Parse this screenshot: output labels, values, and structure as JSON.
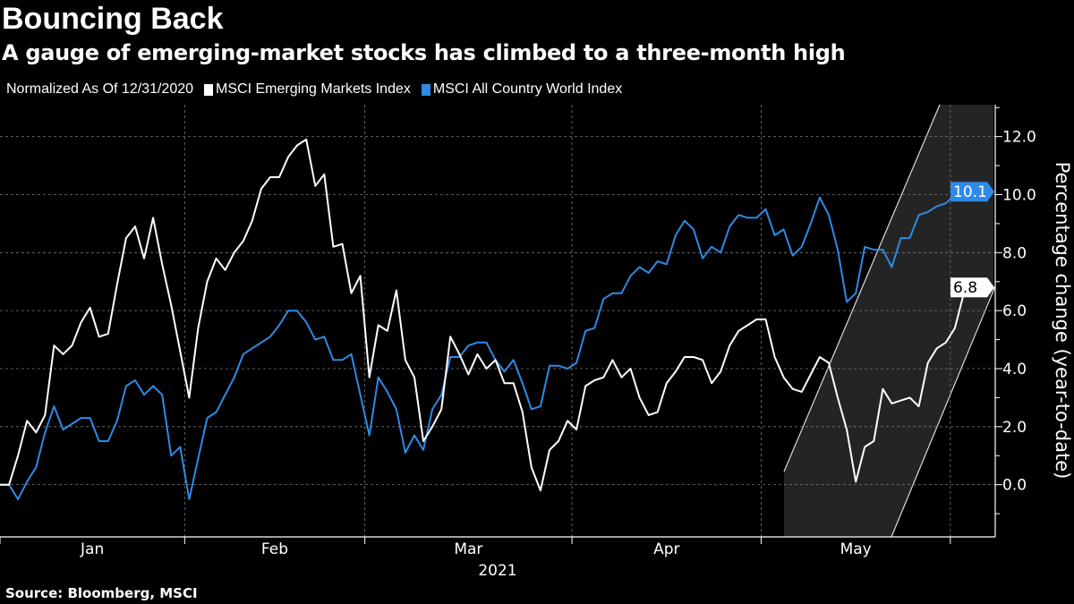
{
  "title": "Bouncing Back",
  "subtitle": "A gauge of emerging-market stocks has climbed to a three-month high",
  "legend": {
    "note": "Normalized As Of 12/31/2020",
    "items": [
      {
        "label": "MSCI Emerging Markets Index",
        "color": "#ffffff"
      },
      {
        "label": "MSCI All Country World Index",
        "color": "#2e8ae6"
      }
    ]
  },
  "source": "Source: Bloomberg, MSCI",
  "chart_data": {
    "type": "line",
    "title": "Bouncing Back",
    "ylabel": "Percentage change (year-to-date)",
    "xlabel": "2021",
    "x_tick_labels": [
      "Jan",
      "Feb",
      "Mar",
      "Apr",
      "May"
    ],
    "y_ticks": [
      "0.0",
      "2.0",
      "4.0",
      "6.0",
      "8.0",
      "10.0",
      "12.0"
    ],
    "ylim": [
      -1.8,
      13.1
    ],
    "y_axis_side": "right",
    "grid": true,
    "legend_position": "top-left",
    "background": "#000000",
    "x": [
      "2020-12-31",
      "2021-01-04",
      "2021-01-05",
      "2021-01-06",
      "2021-01-07",
      "2021-01-08",
      "2021-01-11",
      "2021-01-12",
      "2021-01-13",
      "2021-01-14",
      "2021-01-15",
      "2021-01-18",
      "2021-01-19",
      "2021-01-20",
      "2021-01-21",
      "2021-01-22",
      "2021-01-25",
      "2021-01-26",
      "2021-01-27",
      "2021-01-28",
      "2021-01-29",
      "2021-02-01",
      "2021-02-02",
      "2021-02-03",
      "2021-02-04",
      "2021-02-05",
      "2021-02-08",
      "2021-02-09",
      "2021-02-10",
      "2021-02-11",
      "2021-02-12",
      "2021-02-15",
      "2021-02-16",
      "2021-02-17",
      "2021-02-18",
      "2021-02-19",
      "2021-02-22",
      "2021-02-23",
      "2021-02-24",
      "2021-02-25",
      "2021-02-26",
      "2021-03-01",
      "2021-03-02",
      "2021-03-03",
      "2021-03-04",
      "2021-03-05",
      "2021-03-08",
      "2021-03-09",
      "2021-03-10",
      "2021-03-11",
      "2021-03-12",
      "2021-03-15",
      "2021-03-16",
      "2021-03-17",
      "2021-03-18",
      "2021-03-19",
      "2021-03-22",
      "2021-03-23",
      "2021-03-24",
      "2021-03-25",
      "2021-03-26",
      "2021-03-29",
      "2021-03-30",
      "2021-03-31",
      "2021-04-01",
      "2021-04-05",
      "2021-04-06",
      "2021-04-07",
      "2021-04-08",
      "2021-04-09",
      "2021-04-12",
      "2021-04-13",
      "2021-04-14",
      "2021-04-15",
      "2021-04-16",
      "2021-04-19",
      "2021-04-20",
      "2021-04-21",
      "2021-04-22",
      "2021-04-23",
      "2021-04-26",
      "2021-04-27",
      "2021-04-28",
      "2021-04-29",
      "2021-04-30",
      "2021-05-03",
      "2021-05-04",
      "2021-05-05",
      "2021-05-06",
      "2021-05-07",
      "2021-05-10",
      "2021-05-11",
      "2021-05-12",
      "2021-05-13",
      "2021-05-14",
      "2021-05-17",
      "2021-05-18",
      "2021-05-19",
      "2021-05-20",
      "2021-05-21",
      "2021-05-24",
      "2021-05-25",
      "2021-05-26",
      "2021-05-27",
      "2021-05-28",
      "2021-05-31",
      "2021-06-01",
      "2021-06-02",
      "2021-06-03"
    ],
    "series": [
      {
        "name": "MSCI Emerging Markets Index",
        "color": "#ffffff",
        "last_label": "6.8",
        "values": [
          0.0,
          0.0,
          1.0,
          2.2,
          1.8,
          2.4,
          4.8,
          4.5,
          4.8,
          5.6,
          6.1,
          5.1,
          5.2,
          6.9,
          8.5,
          8.9,
          7.8,
          9.2,
          7.6,
          6.2,
          4.6,
          3.0,
          5.4,
          7.0,
          7.8,
          7.4,
          8.0,
          8.4,
          9.1,
          10.2,
          10.6,
          10.6,
          11.3,
          11.7,
          11.9,
          10.3,
          10.7,
          8.2,
          8.3,
          6.6,
          7.2,
          3.7,
          5.5,
          5.3,
          6.7,
          4.3,
          3.7,
          1.5,
          2.0,
          2.6,
          5.1,
          4.5,
          3.8,
          4.5,
          4.0,
          4.3,
          3.5,
          3.5,
          2.5,
          0.6,
          -0.2,
          1.2,
          1.5,
          2.2,
          1.9,
          3.4,
          3.6,
          3.7,
          4.3,
          3.7,
          4.0,
          3.0,
          2.4,
          2.5,
          3.5,
          3.9,
          4.4,
          4.4,
          4.3,
          3.5,
          3.9,
          4.8,
          5.3,
          5.5,
          5.7,
          5.7,
          4.4,
          3.7,
          3.3,
          3.2,
          3.8,
          4.4,
          4.2,
          3.0,
          1.9,
          0.1,
          1.3,
          1.5,
          3.3,
          2.8,
          2.9,
          3.0,
          2.7,
          4.2,
          4.7,
          4.9,
          5.4,
          6.6,
          6.8
        ]
      },
      {
        "name": "MSCI All Country World Index",
        "color": "#2e8ae6",
        "last_label": "10.1",
        "values": [
          0.0,
          0.0,
          -0.5,
          0.1,
          0.6,
          1.8,
          2.7,
          1.9,
          2.1,
          2.3,
          2.3,
          1.5,
          1.5,
          2.2,
          3.4,
          3.6,
          3.1,
          3.4,
          3.1,
          1.0,
          1.3,
          -0.5,
          0.9,
          2.3,
          2.5,
          3.1,
          3.7,
          4.5,
          4.7,
          4.9,
          5.1,
          5.5,
          6.0,
          6.0,
          5.6,
          5.0,
          5.1,
          4.3,
          4.3,
          4.5,
          3.1,
          1.7,
          3.7,
          3.2,
          2.6,
          1.1,
          1.7,
          1.2,
          2.6,
          3.1,
          4.4,
          4.4,
          4.8,
          4.9,
          4.9,
          4.3,
          3.9,
          4.3,
          3.5,
          2.6,
          2.7,
          4.1,
          4.1,
          4.0,
          4.2,
          5.3,
          5.4,
          6.4,
          6.6,
          6.6,
          7.2,
          7.5,
          7.3,
          7.7,
          7.6,
          8.6,
          9.1,
          8.8,
          7.8,
          8.2,
          8.0,
          8.9,
          9.3,
          9.2,
          9.2,
          9.5,
          8.6,
          8.8,
          7.9,
          8.2,
          9.0,
          9.9,
          9.3,
          8.1,
          6.3,
          6.6,
          8.2,
          8.1,
          8.1,
          7.5,
          8.5,
          8.5,
          9.3,
          9.4,
          9.6,
          9.7,
          10.0,
          10.1,
          10.1
        ]
      }
    ]
  }
}
